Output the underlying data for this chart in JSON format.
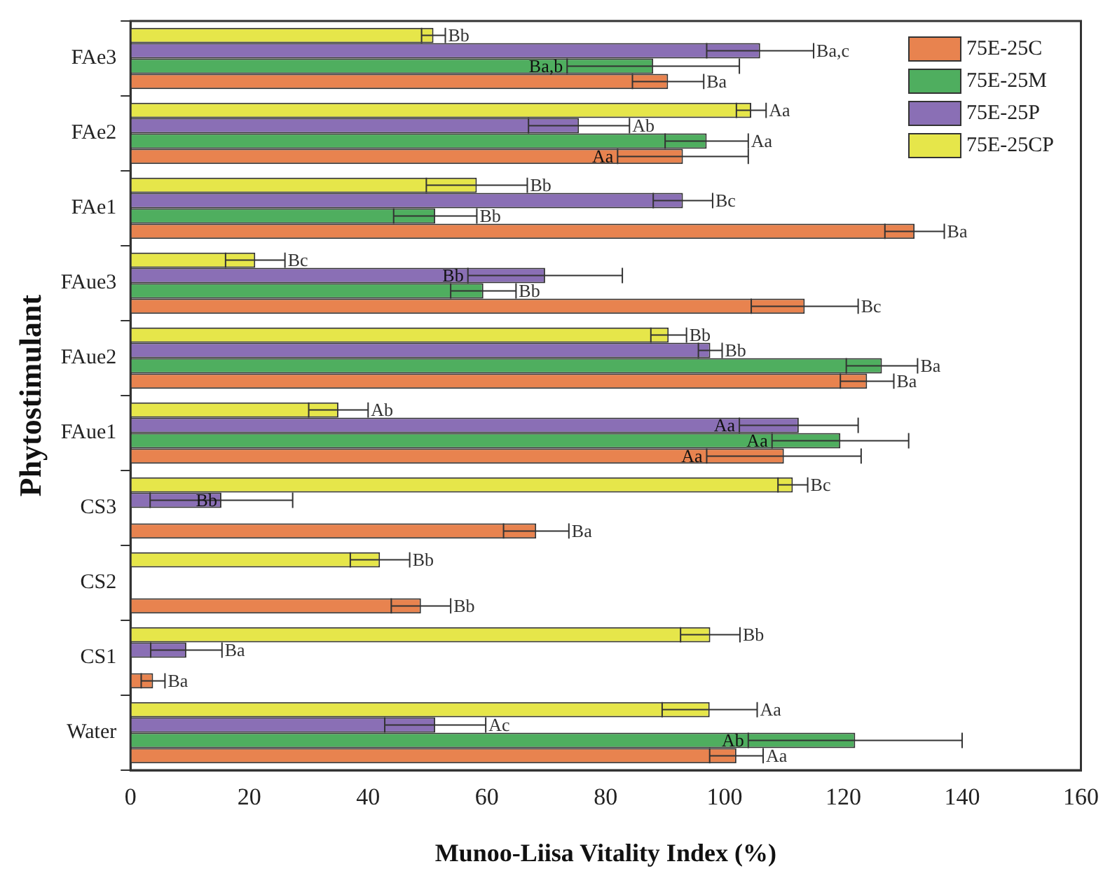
{
  "chart_data": {
    "type": "bar",
    "orientation": "horizontal",
    "xlabel": "Munoo-Liisa Vitality Index (%)",
    "ylabel": "Phytostimulant",
    "categories": [
      "FAe3",
      "FAe2",
      "FAe1",
      "FAue3",
      "FAue2",
      "FAue1",
      "CS3",
      "CS2",
      "CS1",
      "Water"
    ],
    "xlim": [
      0,
      160
    ],
    "xticks": [
      0,
      20,
      40,
      60,
      80,
      100,
      120,
      140,
      160
    ],
    "grid": false,
    "legend": "top right",
    "series": [
      {
        "name": "75E-25C",
        "color": "#e8834f",
        "values": [
          90.5,
          93,
          132,
          113.5,
          124,
          110,
          68.3,
          48.9,
          3.8,
          102
        ],
        "errors": [
          6,
          11,
          5,
          9,
          4.5,
          13,
          5.5,
          5,
          2,
          4.5
        ],
        "value_labels": [
          "Ba",
          "Aa",
          "Ba",
          "Bc",
          "Ba",
          "Aa",
          "Ba",
          "Bb",
          "Ba",
          "Aa"
        ]
      },
      {
        "name": "75E-25M",
        "color": "#4fae5f",
        "values": [
          88,
          97,
          51.3,
          59.4,
          126.5,
          119.5,
          null,
          null,
          null,
          122
        ],
        "errors": [
          14.5,
          7,
          7,
          5.5,
          6,
          11.5,
          null,
          null,
          null,
          18
        ],
        "value_labels": [
          "Ba,b",
          "Aa",
          "Bb",
          "Bb",
          "Ba",
          "Aa",
          null,
          null,
          null,
          "Ab"
        ]
      },
      {
        "name": "75E-25P",
        "color": "#8a6fb5",
        "values": [
          106,
          75.5,
          93,
          69.8,
          97.6,
          112.5,
          15.3,
          null,
          9.4,
          51.3
        ],
        "errors": [
          9,
          8.5,
          5,
          13,
          2,
          10,
          12,
          null,
          6,
          8.5
        ],
        "value_labels": [
          "Ba,c",
          "Ab",
          "Bc",
          "Bb",
          "Bb",
          "Aa",
          "Bb",
          null,
          "Ba",
          "Ac"
        ]
      },
      {
        "name": "75E-25CP",
        "color": "#e6e64a",
        "values": [
          51,
          104.5,
          58.3,
          21,
          90.6,
          35,
          111.5,
          42,
          97.6,
          97.5
        ],
        "errors": [
          2,
          2.5,
          8.5,
          5,
          3,
          5,
          2.5,
          5,
          5,
          8
        ],
        "value_labels": [
          "Bb",
          "Aa",
          "Bb",
          "Bc",
          "Bb",
          "Ab",
          "Bc",
          "Bb",
          "Bb",
          "Aa"
        ]
      }
    ]
  }
}
